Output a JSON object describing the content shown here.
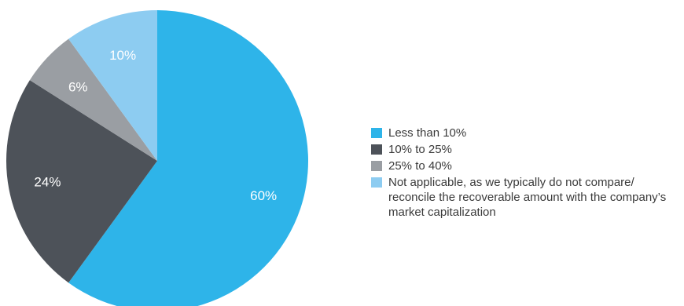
{
  "chart_data": {
    "type": "pie",
    "categories": [
      "Less than 10%",
      "10% to 25%",
      "25% to 40%",
      "Not applicable, as we typically do not compare/ reconcile the recoverable amount with the company’s market capitalization"
    ],
    "values": [
      60,
      24,
      6,
      10
    ],
    "data_labels": [
      "60%",
      "24%",
      "6%",
      "10%"
    ],
    "colors": [
      "#2eb4e9",
      "#4d5259",
      "#9a9ea3",
      "#8dccf1"
    ],
    "start_angle": "top",
    "direction": "clockwise",
    "legend_position": "right"
  }
}
